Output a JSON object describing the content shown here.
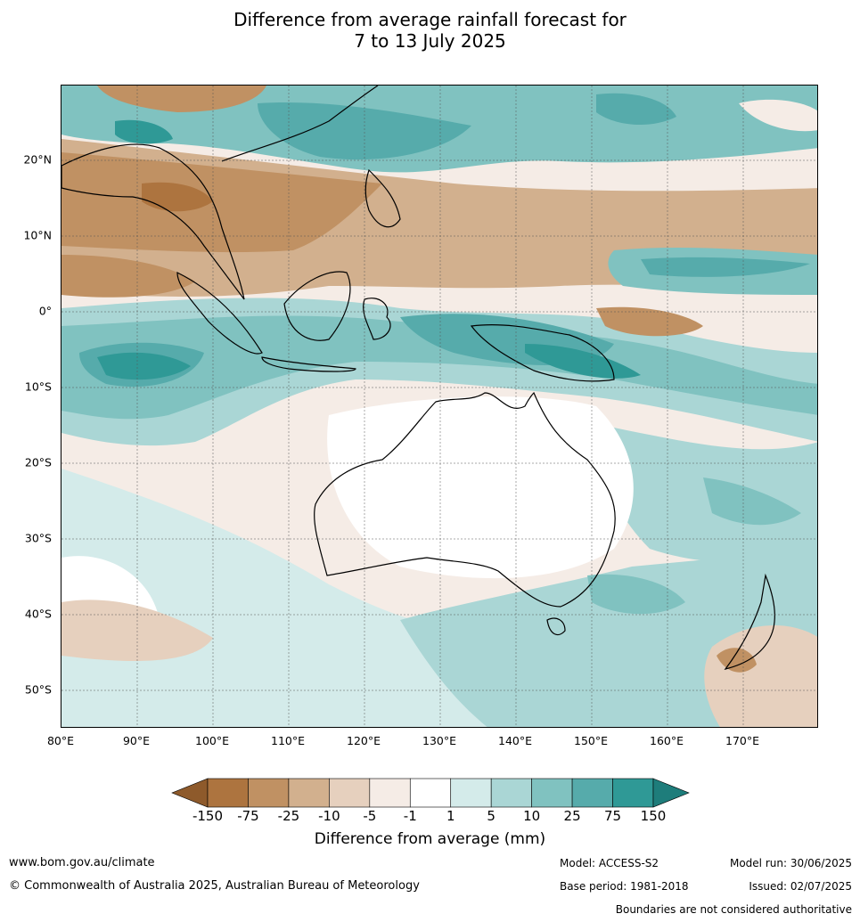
{
  "title": {
    "line1": "Difference from average rainfall forecast for",
    "line2": "7 to 13 July 2025"
  },
  "map": {
    "lat_labels": [
      "20°N",
      "10°N",
      "0°",
      "10°S",
      "20°S",
      "30°S",
      "40°S",
      "50°S"
    ],
    "lon_labels": [
      "80°E",
      "90°E",
      "100°E",
      "110°E",
      "120°E",
      "130°E",
      "140°E",
      "150°E",
      "160°E",
      "170°E"
    ]
  },
  "colorbar": {
    "ticks": [
      "-150",
      "-75",
      "-25",
      "-10",
      "-5",
      "-1",
      "1",
      "5",
      "10",
      "25",
      "75",
      "150"
    ],
    "colors": [
      "#8e5a2b",
      "#ad743f",
      "#c09163",
      "#d2b08e",
      "#e6d0be",
      "#f5ece6",
      "#ffffff",
      "#d4ebea",
      "#aad6d5",
      "#80c2c0",
      "#56abab",
      "#2f9996",
      "#1e7d7b"
    ],
    "label": "Difference from average (mm)"
  },
  "footer": {
    "website": "www.bom.gov.au/climate",
    "copyright": "© Commonwealth of Australia 2025, Australian Bureau of Meteorology",
    "model": "Model: ACCESS-S2",
    "base_period": "Base period: 1981-2018",
    "model_run": "Model run: 30/06/2025",
    "issued": "Issued: 02/07/2025",
    "disclaimer": "Boundaries are not considered authoritative"
  }
}
